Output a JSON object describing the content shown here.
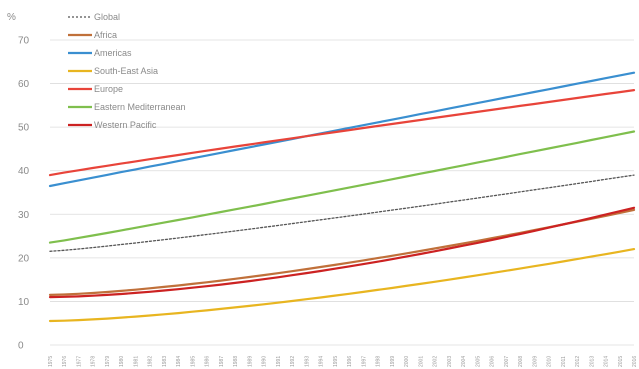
{
  "chart_data": {
    "type": "line",
    "unit": "%",
    "ylim": [
      0,
      70
    ],
    "yticks": [
      0,
      10,
      20,
      30,
      40,
      50,
      60,
      70
    ],
    "grid": "horizontal",
    "legend": "top-left",
    "x": [
      1975,
      1976,
      1977,
      1978,
      1979,
      1980,
      1981,
      1982,
      1983,
      1984,
      1985,
      1986,
      1987,
      1988,
      1989,
      1990,
      1991,
      1992,
      1993,
      1994,
      1995,
      1996,
      1997,
      1998,
      1999,
      2000,
      2001,
      2002,
      2003,
      2004,
      2005,
      2006,
      2007,
      2008,
      2009,
      2010,
      2011,
      2012,
      2013,
      2014,
      2015,
      2016
    ],
    "series": [
      {
        "name": "Global",
        "color": "#555555",
        "dashed": true,
        "start": 21.5,
        "end": 39.0,
        "curve": 1.15
      },
      {
        "name": "Africa",
        "color": "#c0703a",
        "dashed": false,
        "start": 11.5,
        "end": 31.0,
        "curve": 1.45
      },
      {
        "name": "Americas",
        "color": "#3a8fd0",
        "dashed": false,
        "start": 36.5,
        "end": 62.5,
        "curve": 1.0
      },
      {
        "name": "South-East Asia",
        "color": "#e8b520",
        "dashed": false,
        "start": 5.5,
        "end": 22.0,
        "curve": 1.45
      },
      {
        "name": "Europe",
        "color": "#e8443a",
        "dashed": false,
        "start": 39.0,
        "end": 58.5,
        "curve": 0.95
      },
      {
        "name": "Eastern Mediterranean",
        "color": "#7fbf4d",
        "dashed": false,
        "start": 23.5,
        "end": 49.0,
        "curve": 1.05
      },
      {
        "name": "Western Pacific",
        "color": "#cc2222",
        "dashed": false,
        "start": 11.0,
        "end": 31.5,
        "curve": 1.6
      }
    ]
  }
}
